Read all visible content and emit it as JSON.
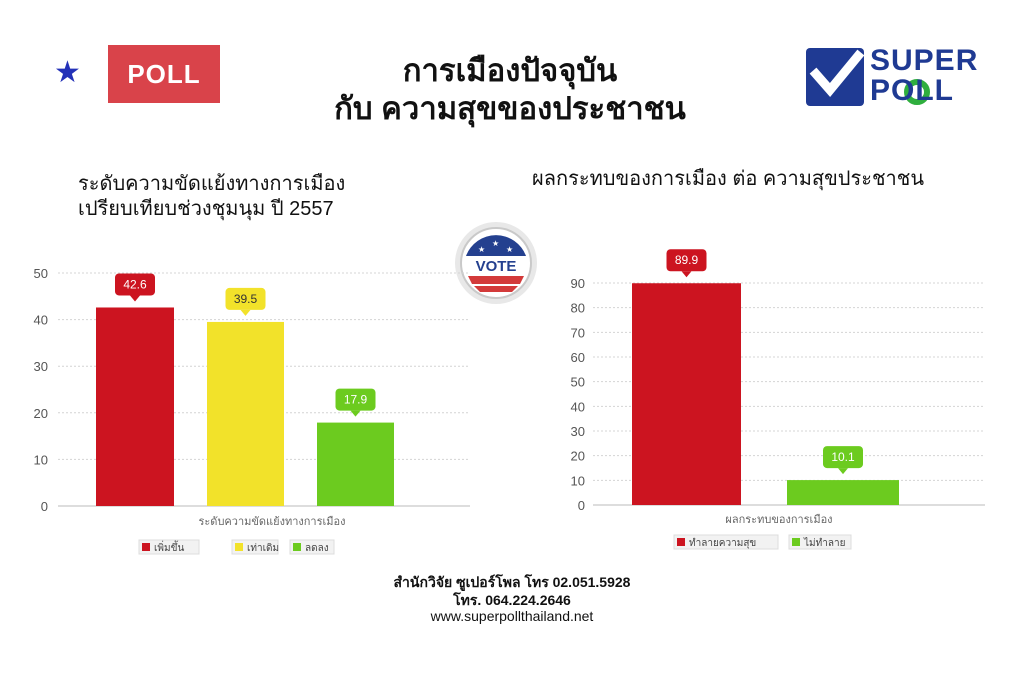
{
  "header": {
    "badge_label": "POLL",
    "title_line1": "การเมืองปัจจุบัน",
    "title_line2": "กับ ความสุขของประชาชน",
    "logo_line1": "SUPER",
    "logo_line2": "POLL",
    "vote_badge_text": "VOTE",
    "colors": {
      "badge": "#d9434a",
      "star": "#2331b8",
      "logo_blue": "#1f3a93"
    }
  },
  "left_chart": {
    "subtitle_line1": "ระดับความขัดแย้งทางการเมือง",
    "subtitle_line2": "เปรียบเทียบช่วงชุมนุม ปี 2557"
  },
  "right_chart": {
    "subtitle": "ผลกระทบของการเมือง ต่อ ความสุขประชาชน"
  },
  "chart_data": [
    {
      "type": "bar",
      "title": "ระดับความขัดแย้งทางการเมือง เปรียบเทียบช่วงชุมนุม ปี 2557",
      "xlabel": "ระดับความขัดแย้งทางการเมือง",
      "ylim": [
        0,
        50
      ],
      "yticks": [
        0,
        10,
        20,
        30,
        40,
        50
      ],
      "grid": true,
      "legend_position": "bottom",
      "series": [
        {
          "name": "เพิ่มขึ้น",
          "value": 42.6,
          "label": "42.6",
          "color": "#cc1420"
        },
        {
          "name": "เท่าเดิม",
          "value": 39.5,
          "label": "39.5",
          "color": "#f2e22a"
        },
        {
          "name": "ลดลง",
          "value": 17.9,
          "label": "17.9",
          "color": "#6ccb1f"
        }
      ]
    },
    {
      "type": "bar",
      "title": "ผลกระทบของการเมือง ต่อ ความสุขประชาชน",
      "xlabel": "ผลกระทบของการเมือง",
      "ylim": [
        0,
        90
      ],
      "yticks": [
        0,
        10,
        20,
        30,
        40,
        50,
        60,
        70,
        80,
        90
      ],
      "grid": true,
      "legend_position": "bottom",
      "series": [
        {
          "name": "ทำลายความสุข",
          "value": 89.9,
          "label": "89.9",
          "color": "#cc1420"
        },
        {
          "name": "ไม่ทำลาย",
          "value": 10.1,
          "label": "10.1",
          "color": "#6ccb1f"
        }
      ]
    }
  ],
  "footer": {
    "line1": "สำนักวิจัย ซูเปอร์โพล โทร 02.051.5928",
    "line2": "โทร. 064.224.2646",
    "line3": "www.superpollthailand.net"
  }
}
